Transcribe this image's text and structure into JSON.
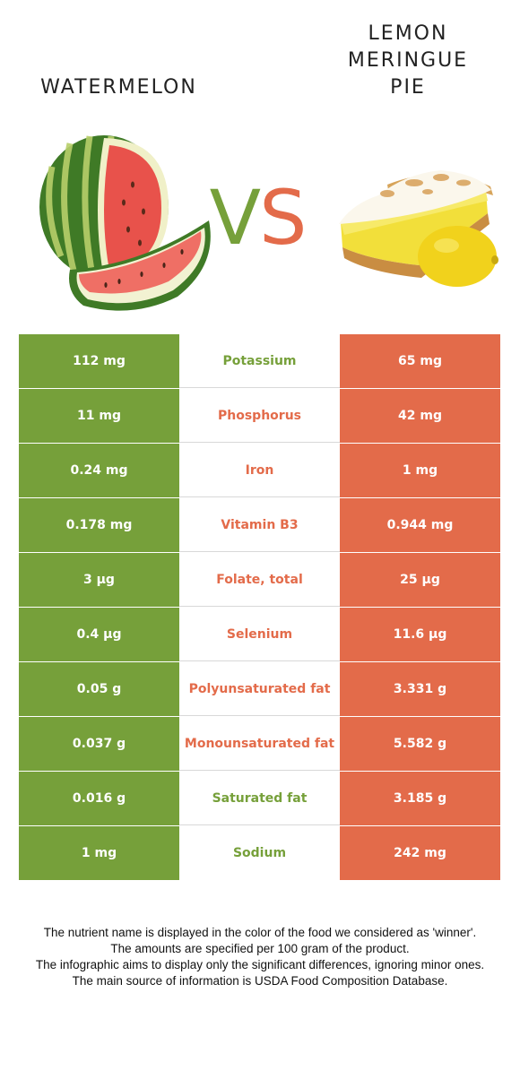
{
  "food_left": {
    "name": "WATERMELON"
  },
  "food_right": {
    "name": "LEMON MERINGUE PIE",
    "lines": [
      "LEMON",
      "MERINGUE",
      "PIE"
    ]
  },
  "vs": {
    "v": "V",
    "s": "S"
  },
  "colors": {
    "left": "#76a03a",
    "right": "#e36b4a"
  },
  "rows": [
    {
      "nutrient": "Potassium",
      "left": "112 mg",
      "right": "65 mg",
      "winner": "left"
    },
    {
      "nutrient": "Phosphorus",
      "left": "11 mg",
      "right": "42 mg",
      "winner": "right"
    },
    {
      "nutrient": "Iron",
      "left": "0.24 mg",
      "right": "1 mg",
      "winner": "right"
    },
    {
      "nutrient": "Vitamin B3",
      "left": "0.178 mg",
      "right": "0.944 mg",
      "winner": "right"
    },
    {
      "nutrient": "Folate, total",
      "left": "3 µg",
      "right": "25 µg",
      "winner": "right"
    },
    {
      "nutrient": "Selenium",
      "left": "0.4 µg",
      "right": "11.6 µg",
      "winner": "right"
    },
    {
      "nutrient": "Polyunsaturated fat",
      "left": "0.05 g",
      "right": "3.331 g",
      "winner": "right"
    },
    {
      "nutrient": "Monounsaturated fat",
      "left": "0.037 g",
      "right": "5.582 g",
      "winner": "right"
    },
    {
      "nutrient": "Saturated fat",
      "left": "0.016 g",
      "right": "3.185 g",
      "winner": "left"
    },
    {
      "nutrient": "Sodium",
      "left": "1 mg",
      "right": "242 mg",
      "winner": "left"
    }
  ],
  "footer": {
    "lines": [
      "The nutrient name is displayed in the color of the food we considered as 'winner'.",
      "The amounts are specified per 100 gram of the product.",
      "The infographic aims to display only the significant differences, ignoring minor ones.",
      "The main source of information is USDA Food Composition Database."
    ]
  }
}
